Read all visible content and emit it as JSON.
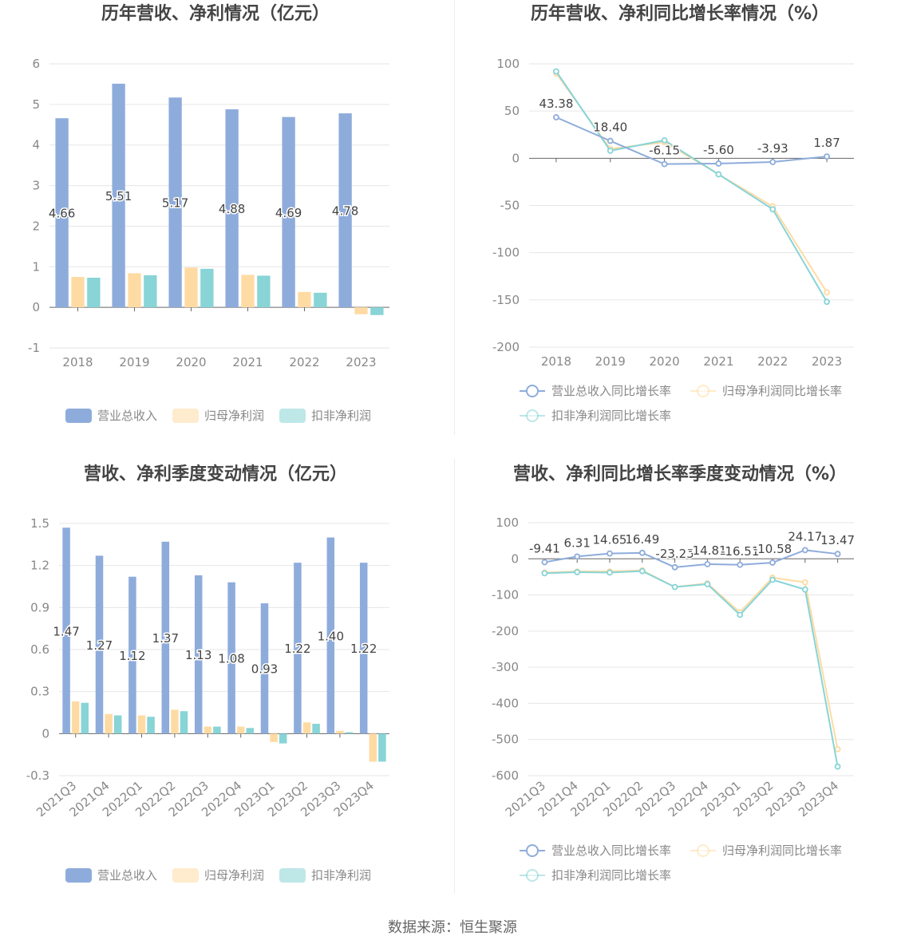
{
  "colors": {
    "revenue": "#8eacdb",
    "net_profit": "#ffdba4",
    "deducted_profit": "#88d4d6",
    "axis": "#666666",
    "grid": "#e6e6e6",
    "text": "#444444"
  },
  "footer": {
    "source": "数据来源：恒生聚源"
  },
  "chart_data": [
    {
      "type": "bar",
      "title": "历年营收、净利情况（亿元）",
      "categories": [
        "2018",
        "2019",
        "2020",
        "2021",
        "2022",
        "2023"
      ],
      "ylim": [
        -1,
        6
      ],
      "yticks": [
        "6",
        "5",
        "4",
        "3",
        "2",
        "1",
        "0",
        "-1"
      ],
      "ytick_values": [
        6,
        5,
        4,
        3,
        2,
        1,
        0,
        -1
      ],
      "grid": true,
      "legend_position": "bottom",
      "series": [
        {
          "name": "营业总收入",
          "values": [
            4.66,
            5.51,
            5.17,
            4.88,
            4.69,
            4.78
          ],
          "labels": [
            "4.66",
            "5.51",
            "5.17",
            "4.88",
            "4.69",
            "4.78"
          ]
        },
        {
          "name": "归母净利润",
          "values": [
            0.75,
            0.84,
            0.98,
            0.8,
            0.38,
            -0.17
          ]
        },
        {
          "name": "扣非净利润",
          "values": [
            0.73,
            0.79,
            0.95,
            0.78,
            0.36,
            -0.19
          ]
        }
      ]
    },
    {
      "type": "line",
      "title": "历年营收、净利同比增长率情况（%）",
      "categories": [
        "2018",
        "2019",
        "2020",
        "2021",
        "2022",
        "2023"
      ],
      "ylim": [
        -200,
        100
      ],
      "yticks": [
        "100",
        "50",
        "0",
        "-50",
        "-100",
        "-150",
        "-200"
      ],
      "ytick_values": [
        100,
        50,
        0,
        -50,
        -100,
        -150,
        -200
      ],
      "grid": true,
      "legend_position": "bottom",
      "series": [
        {
          "name": "营业总收入同比增长率",
          "values": [
            43.38,
            18.4,
            -6.15,
            -5.6,
            -3.93,
            1.87
          ],
          "labels": [
            "43.38",
            "18.40",
            "-6.15",
            "-5.60",
            "-3.93",
            "1.87"
          ]
        },
        {
          "name": "归母净利润同比增长率",
          "values": [
            90,
            10,
            17,
            -17,
            -51,
            -142
          ]
        },
        {
          "name": "扣非净利润同比增长率",
          "values": [
            92,
            8,
            19,
            -17,
            -54,
            -152
          ]
        }
      ]
    },
    {
      "type": "bar",
      "title": "营收、净利季度变动情况（亿元）",
      "categories": [
        "2021Q3",
        "2021Q4",
        "2022Q1",
        "2022Q2",
        "2022Q3",
        "2022Q4",
        "2023Q1",
        "2023Q2",
        "2023Q3",
        "2023Q4"
      ],
      "ylim": [
        -0.3,
        1.5
      ],
      "yticks": [
        "1.5",
        "1.2",
        "0.9",
        "0.6",
        "0.3",
        "0",
        "-0.3"
      ],
      "ytick_values": [
        1.5,
        1.2,
        0.9,
        0.6,
        0.3,
        0,
        -0.3
      ],
      "grid": true,
      "legend_position": "bottom",
      "series": [
        {
          "name": "营业总收入",
          "values": [
            1.47,
            1.27,
            1.12,
            1.37,
            1.13,
            1.08,
            0.93,
            1.22,
            1.4,
            1.22
          ],
          "labels": [
            "1.47",
            "1.27",
            "1.12",
            "1.37",
            "1.13",
            "1.08",
            "0.93",
            "1.22",
            "1.40",
            "1.22"
          ]
        },
        {
          "name": "归母净利润",
          "values": [
            0.23,
            0.14,
            0.13,
            0.17,
            0.05,
            0.05,
            -0.06,
            0.08,
            0.02,
            -0.2
          ]
        },
        {
          "name": "扣非净利润",
          "values": [
            0.22,
            0.13,
            0.12,
            0.16,
            0.05,
            0.04,
            -0.07,
            0.07,
            0.01,
            -0.2
          ]
        }
      ]
    },
    {
      "type": "line",
      "title": "营收、净利同比增长率季度变动情况（%）",
      "categories": [
        "2021Q3",
        "2021Q4",
        "2022Q1",
        "2022Q2",
        "2022Q3",
        "2022Q4",
        "2023Q1",
        "2023Q2",
        "2023Q3",
        "2023Q4"
      ],
      "ylim": [
        -600,
        100
      ],
      "yticks": [
        "100",
        "0",
        "-100",
        "-200",
        "-300",
        "-400",
        "-500",
        "-600"
      ],
      "ytick_values": [
        100,
        0,
        -100,
        -200,
        -300,
        -400,
        -500,
        -600
      ],
      "grid": true,
      "legend_position": "bottom",
      "series": [
        {
          "name": "营业总收入同比增长率",
          "values": [
            -9.41,
            6.31,
            14.65,
            16.49,
            -23.25,
            -14.81,
            -16.51,
            -10.58,
            24.17,
            13.47
          ],
          "labels": [
            "-9.41",
            "6.31",
            "14.65",
            "16.49",
            "-23.25",
            "-14.81",
            "-16.51",
            "-10.58",
            "24.17",
            "13.47"
          ]
        },
        {
          "name": "归母净利润同比增长率",
          "values": [
            -38,
            -35,
            -35,
            -32,
            -78,
            -68,
            -148,
            -52,
            -65,
            -527
          ]
        },
        {
          "name": "扣非净利润同比增长率",
          "values": [
            -40,
            -37,
            -38,
            -34,
            -78,
            -70,
            -155,
            -58,
            -85,
            -575
          ]
        }
      ]
    }
  ]
}
